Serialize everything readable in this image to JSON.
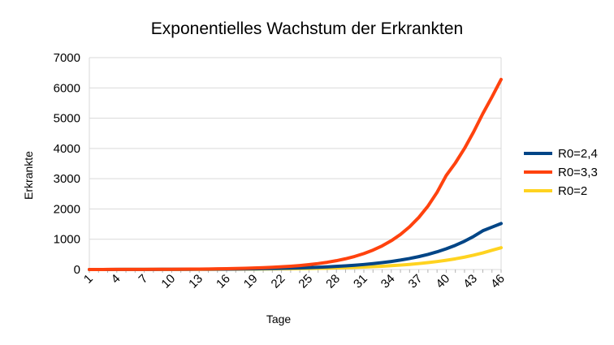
{
  "chart_data": {
    "type": "line",
    "title": "Exponentielles Wachstum der Erkrankten",
    "xlabel": "Tage",
    "ylabel": "Erkrankte",
    "ylim": [
      0,
      7000
    ],
    "y_ticks": [
      0,
      1000,
      2000,
      3000,
      4000,
      5000,
      6000,
      7000
    ],
    "x": [
      1,
      2,
      3,
      4,
      5,
      6,
      7,
      8,
      9,
      10,
      11,
      12,
      13,
      14,
      15,
      16,
      17,
      18,
      19,
      20,
      21,
      22,
      23,
      24,
      25,
      26,
      27,
      28,
      29,
      30,
      31,
      32,
      33,
      34,
      35,
      36,
      37,
      38,
      39,
      40,
      41,
      42,
      43,
      44,
      45,
      46
    ],
    "x_tick_labels": [
      "1",
      "4",
      "7",
      "10",
      "13",
      "16",
      "19",
      "22",
      "25",
      "28",
      "31",
      "34",
      "37",
      "40",
      "43",
      "46"
    ],
    "grid": true,
    "legend_position": "right",
    "series": [
      {
        "name": "R0=2,4",
        "color": "#004586",
        "values": [
          1,
          1,
          1,
          2,
          2,
          3,
          3,
          4,
          5,
          6,
          7,
          8,
          9,
          11,
          13,
          15,
          18,
          21,
          25,
          29,
          34,
          40,
          47,
          55,
          64,
          75,
          88,
          103,
          121,
          142,
          166,
          194,
          227,
          266,
          311,
          364,
          426,
          499,
          584,
          683,
          799,
          935,
          1094,
          1280,
          1400,
          1520
        ]
      },
      {
        "name": "R0=3,3",
        "color": "#ff420e",
        "values": [
          1,
          1,
          2,
          2,
          3,
          3,
          4,
          5,
          6,
          8,
          10,
          12,
          15,
          18,
          22,
          27,
          33,
          40,
          49,
          60,
          73,
          89,
          108,
          132,
          161,
          196,
          239,
          291,
          355,
          432,
          526,
          641,
          781,
          951,
          1158,
          1411,
          1718,
          2093,
          2550,
          3106,
          3520,
          4000,
          4550,
          5150,
          5700,
          6280
        ]
      },
      {
        "name": "R0=2",
        "color": "#ffd320",
        "values": [
          1,
          1,
          1,
          1,
          2,
          2,
          2,
          3,
          3,
          4,
          4,
          5,
          6,
          7,
          8,
          9,
          10,
          12,
          14,
          16,
          19,
          22,
          25,
          29,
          34,
          39,
          45,
          52,
          60,
          70,
          81,
          94,
          109,
          126,
          146,
          169,
          196,
          227,
          263,
          305,
          353,
          409,
          474,
          549,
          636,
          720
        ]
      }
    ]
  }
}
